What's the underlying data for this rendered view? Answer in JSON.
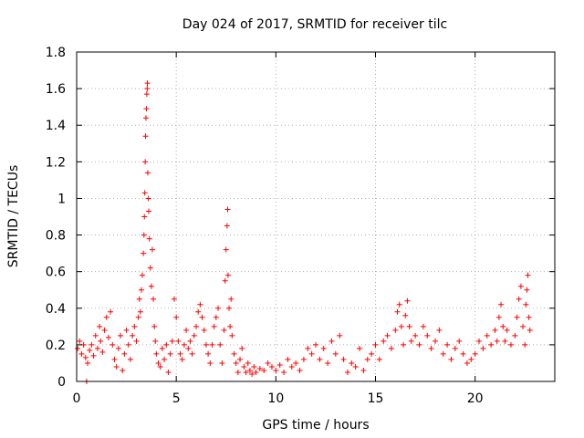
{
  "chart_data": {
    "type": "scatter",
    "title": "Day 024 of 2017, SRMTID for receiver tilc",
    "xlabel": "GPS time / hours",
    "ylabel": "SRMTID / TECUs",
    "xlim": [
      0,
      24
    ],
    "ylim": [
      0,
      1.8
    ],
    "xticks": [
      0,
      5,
      10,
      15,
      20
    ],
    "xtick_labels": [
      "0",
      "5",
      "10",
      "15",
      "20"
    ],
    "yticks": [
      0,
      0.2,
      0.4,
      0.6,
      0.8,
      1.0,
      1.2,
      1.4,
      1.6,
      1.8
    ],
    "ytick_labels": [
      "0",
      "0.2",
      "0.4",
      "0.6",
      "0.8",
      "1",
      "1.2",
      "1.4",
      "1.6",
      "1.8"
    ],
    "grid": true,
    "marker": "+",
    "series": [
      {
        "name": "SRMTID",
        "color": "#ff0000",
        "points": [
          [
            0.05,
            0.18
          ],
          [
            0.15,
            0.22
          ],
          [
            0.25,
            0.15
          ],
          [
            0.35,
            0.2
          ],
          [
            0.45,
            0.13
          ],
          [
            0.5,
            0.0
          ],
          [
            0.55,
            0.1
          ],
          [
            0.65,
            0.17
          ],
          [
            0.75,
            0.2
          ],
          [
            0.85,
            0.14
          ],
          [
            0.95,
            0.25
          ],
          [
            1.05,
            0.18
          ],
          [
            1.15,
            0.3
          ],
          [
            1.2,
            0.22
          ],
          [
            1.3,
            0.16
          ],
          [
            1.4,
            0.28
          ],
          [
            1.5,
            0.35
          ],
          [
            1.6,
            0.24
          ],
          [
            1.7,
            0.38
          ],
          [
            1.8,
            0.2
          ],
          [
            1.9,
            0.12
          ],
          [
            2.0,
            0.08
          ],
          [
            2.1,
            0.18
          ],
          [
            2.2,
            0.25
          ],
          [
            2.3,
            0.06
          ],
          [
            2.4,
            0.15
          ],
          [
            2.5,
            0.28
          ],
          [
            2.6,
            0.2
          ],
          [
            2.7,
            0.12
          ],
          [
            2.8,
            0.25
          ],
          [
            2.9,
            0.3
          ],
          [
            3.0,
            0.22
          ],
          [
            3.1,
            0.35
          ],
          [
            3.15,
            0.45
          ],
          [
            3.2,
            0.38
          ],
          [
            3.25,
            0.5
          ],
          [
            3.3,
            0.58
          ],
          [
            3.35,
            0.7
          ],
          [
            3.38,
            0.8
          ],
          [
            3.4,
            0.9
          ],
          [
            3.42,
            1.03
          ],
          [
            3.44,
            1.2
          ],
          [
            3.46,
            1.34
          ],
          [
            3.48,
            1.44
          ],
          [
            3.5,
            1.49
          ],
          [
            3.52,
            1.57
          ],
          [
            3.54,
            1.6
          ],
          [
            3.55,
            1.63
          ],
          [
            3.57,
            1.14
          ],
          [
            3.6,
            1.0
          ],
          [
            3.62,
            0.93
          ],
          [
            3.65,
            0.78
          ],
          [
            3.7,
            0.62
          ],
          [
            3.75,
            0.52
          ],
          [
            3.8,
            0.72
          ],
          [
            3.85,
            0.45
          ],
          [
            3.9,
            0.3
          ],
          [
            3.95,
            0.22
          ],
          [
            4.0,
            0.15
          ],
          [
            4.1,
            0.1
          ],
          [
            4.2,
            0.08
          ],
          [
            4.3,
            0.18
          ],
          [
            4.4,
            0.12
          ],
          [
            4.5,
            0.2
          ],
          [
            4.6,
            0.05
          ],
          [
            4.7,
            0.15
          ],
          [
            4.8,
            0.22
          ],
          [
            4.9,
            0.45
          ],
          [
            5.0,
            0.35
          ],
          [
            5.1,
            0.22
          ],
          [
            5.2,
            0.15
          ],
          [
            5.3,
            0.12
          ],
          [
            5.4,
            0.2
          ],
          [
            5.5,
            0.28
          ],
          [
            5.6,
            0.18
          ],
          [
            5.7,
            0.22
          ],
          [
            5.8,
            0.15
          ],
          [
            5.9,
            0.25
          ],
          [
            6.0,
            0.3
          ],
          [
            6.1,
            0.38
          ],
          [
            6.2,
            0.42
          ],
          [
            6.3,
            0.35
          ],
          [
            6.4,
            0.28
          ],
          [
            6.5,
            0.2
          ],
          [
            6.6,
            0.15
          ],
          [
            6.7,
            0.1
          ],
          [
            6.8,
            0.2
          ],
          [
            6.9,
            0.3
          ],
          [
            7.0,
            0.35
          ],
          [
            7.1,
            0.4
          ],
          [
            7.2,
            0.2
          ],
          [
            7.3,
            0.1
          ],
          [
            7.4,
            0.28
          ],
          [
            7.45,
            0.55
          ],
          [
            7.5,
            0.72
          ],
          [
            7.55,
            0.85
          ],
          [
            7.58,
            0.94
          ],
          [
            7.6,
            0.58
          ],
          [
            7.65,
            0.4
          ],
          [
            7.7,
            0.3
          ],
          [
            7.75,
            0.45
          ],
          [
            7.8,
            0.25
          ],
          [
            7.9,
            0.15
          ],
          [
            8.0,
            0.1
          ],
          [
            8.1,
            0.05
          ],
          [
            8.2,
            0.12
          ],
          [
            8.3,
            0.18
          ],
          [
            8.4,
            0.08
          ],
          [
            8.5,
            0.05
          ],
          [
            8.6,
            0.1
          ],
          [
            8.7,
            0.06
          ],
          [
            8.8,
            0.04
          ],
          [
            8.9,
            0.08
          ],
          [
            9.0,
            0.05
          ],
          [
            9.2,
            0.07
          ],
          [
            9.4,
            0.06
          ],
          [
            9.6,
            0.1
          ],
          [
            9.8,
            0.08
          ],
          [
            10.0,
            0.06
          ],
          [
            10.2,
            0.09
          ],
          [
            10.4,
            0.05
          ],
          [
            10.6,
            0.12
          ],
          [
            10.8,
            0.08
          ],
          [
            11.0,
            0.1
          ],
          [
            11.2,
            0.06
          ],
          [
            11.4,
            0.12
          ],
          [
            11.6,
            0.18
          ],
          [
            11.8,
            0.15
          ],
          [
            12.0,
            0.2
          ],
          [
            12.2,
            0.12
          ],
          [
            12.4,
            0.18
          ],
          [
            12.6,
            0.1
          ],
          [
            12.8,
            0.22
          ],
          [
            13.0,
            0.15
          ],
          [
            13.2,
            0.25
          ],
          [
            13.4,
            0.12
          ],
          [
            13.6,
            0.05
          ],
          [
            13.8,
            0.1
          ],
          [
            14.0,
            0.08
          ],
          [
            14.2,
            0.18
          ],
          [
            14.4,
            0.06
          ],
          [
            14.6,
            0.12
          ],
          [
            14.8,
            0.15
          ],
          [
            15.0,
            0.2
          ],
          [
            15.2,
            0.12
          ],
          [
            15.4,
            0.22
          ],
          [
            15.6,
            0.25
          ],
          [
            15.8,
            0.18
          ],
          [
            16.0,
            0.28
          ],
          [
            16.1,
            0.38
          ],
          [
            16.2,
            0.42
          ],
          [
            16.3,
            0.3
          ],
          [
            16.4,
            0.2
          ],
          [
            16.5,
            0.36
          ],
          [
            16.6,
            0.44
          ],
          [
            16.7,
            0.3
          ],
          [
            16.8,
            0.22
          ],
          [
            17.0,
            0.25
          ],
          [
            17.2,
            0.2
          ],
          [
            17.4,
            0.3
          ],
          [
            17.6,
            0.25
          ],
          [
            17.8,
            0.18
          ],
          [
            18.0,
            0.22
          ],
          [
            18.2,
            0.28
          ],
          [
            18.4,
            0.15
          ],
          [
            18.6,
            0.2
          ],
          [
            18.8,
            0.12
          ],
          [
            19.0,
            0.18
          ],
          [
            19.2,
            0.22
          ],
          [
            19.4,
            0.15
          ],
          [
            19.6,
            0.1
          ],
          [
            19.8,
            0.12
          ],
          [
            20.0,
            0.15
          ],
          [
            20.2,
            0.22
          ],
          [
            20.4,
            0.18
          ],
          [
            20.6,
            0.25
          ],
          [
            20.8,
            0.2
          ],
          [
            21.0,
            0.28
          ],
          [
            21.1,
            0.22
          ],
          [
            21.2,
            0.35
          ],
          [
            21.3,
            0.42
          ],
          [
            21.4,
            0.3
          ],
          [
            21.5,
            0.22
          ],
          [
            21.6,
            0.28
          ],
          [
            21.8,
            0.2
          ],
          [
            22.0,
            0.25
          ],
          [
            22.1,
            0.35
          ],
          [
            22.2,
            0.45
          ],
          [
            22.3,
            0.52
          ],
          [
            22.4,
            0.3
          ],
          [
            22.5,
            0.2
          ],
          [
            22.55,
            0.42
          ],
          [
            22.6,
            0.5
          ],
          [
            22.65,
            0.58
          ],
          [
            22.7,
            0.35
          ],
          [
            22.75,
            0.28
          ]
        ]
      }
    ]
  }
}
